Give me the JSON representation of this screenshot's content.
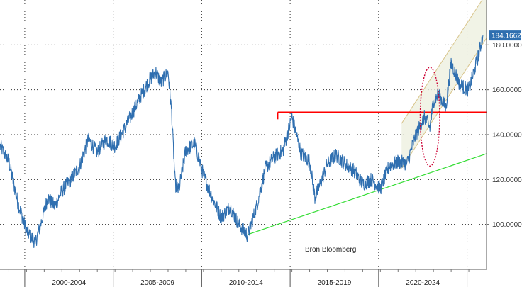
{
  "chart_data": {
    "type": "line",
    "source_note": "Bron Bloomberg",
    "last_value_label": "184.1662",
    "x_periods": [
      "2000-2004",
      "2005-2009",
      "2010-2014",
      "2015-2019",
      "2020-2024"
    ],
    "xlim": [
      1998.5,
      2026.0
    ],
    "ylim": [
      80,
      200
    ],
    "y_ticks": [
      {
        "value": 100,
        "label": "100.0000"
      },
      {
        "value": 120,
        "label": "120.0000"
      },
      {
        "value": 140,
        "label": "140.0000"
      },
      {
        "value": 160,
        "label": "160.0000"
      },
      {
        "value": 180,
        "label": "180.0000"
      }
    ],
    "grid": true,
    "series": [
      {
        "color": "#2f6fb0",
        "x": [
          1998.5,
          1999.0,
          1999.5,
          2000.0,
          2000.5,
          2000.8,
          2001.2,
          2001.6,
          2002.0,
          2002.5,
          2003.0,
          2003.5,
          2004.0,
          2004.5,
          2005.0,
          2005.5,
          2006.0,
          2006.5,
          2007.0,
          2007.3,
          2007.6,
          2008.0,
          2008.2,
          2008.4,
          2008.6,
          2009.0,
          2009.5,
          2010.0,
          2010.5,
          2011.0,
          2011.5,
          2012.0,
          2012.5,
          2013.0,
          2013.5,
          2014.0,
          2014.5,
          2015.0,
          2015.5,
          2016.0,
          2016.3,
          2016.6,
          2017.0,
          2017.5,
          2018.0,
          2018.5,
          2019.0,
          2019.5,
          2020.0,
          2020.5,
          2021.0,
          2021.5,
          2022.0,
          2022.5,
          2022.8,
          2023.0,
          2023.3,
          2023.7,
          2024.0,
          2024.5,
          2025.0,
          2025.5,
          2025.8
        ],
        "y": [
          135,
          128,
          110,
          97,
          92,
          100,
          112,
          108,
          115,
          120,
          126,
          138,
          132,
          138,
          135,
          142,
          150,
          158,
          165,
          168,
          163,
          168,
          150,
          118,
          115,
          133,
          136,
          122,
          112,
          103,
          108,
          100,
          95,
          108,
          125,
          130,
          133,
          148,
          132,
          128,
          112,
          118,
          127,
          131,
          127,
          124,
          118,
          120,
          116,
          126,
          128,
          127,
          140,
          148,
          143,
          155,
          158,
          152,
          172,
          162,
          160,
          174,
          184.17
        ]
      }
    ],
    "annotations": [
      {
        "type": "hline",
        "color": "#ff0000",
        "y": 150,
        "x_from": 2014.2,
        "x_to": 2026.0
      },
      {
        "type": "trendline",
        "color": "#33dd33",
        "from": {
          "x": 2012.5,
          "y": 95.5
        },
        "to": {
          "x": 2026.0,
          "y": 131.5
        }
      },
      {
        "type": "channel",
        "color": "#d8c48a",
        "fill": "#eef0e0",
        "lower": {
          "from": {
            "x": 2021.2,
            "y": 125
          },
          "to": {
            "x": 2026.0,
            "y": 183
          }
        },
        "upper": {
          "from": {
            "x": 2021.2,
            "y": 145
          },
          "to": {
            "x": 2026.0,
            "y": 203
          }
        }
      },
      {
        "type": "ellipse",
        "color": "#cc0033",
        "cx": 2022.8,
        "cy": 148,
        "rx_years": 0.55,
        "ry_units": 22
      }
    ]
  }
}
